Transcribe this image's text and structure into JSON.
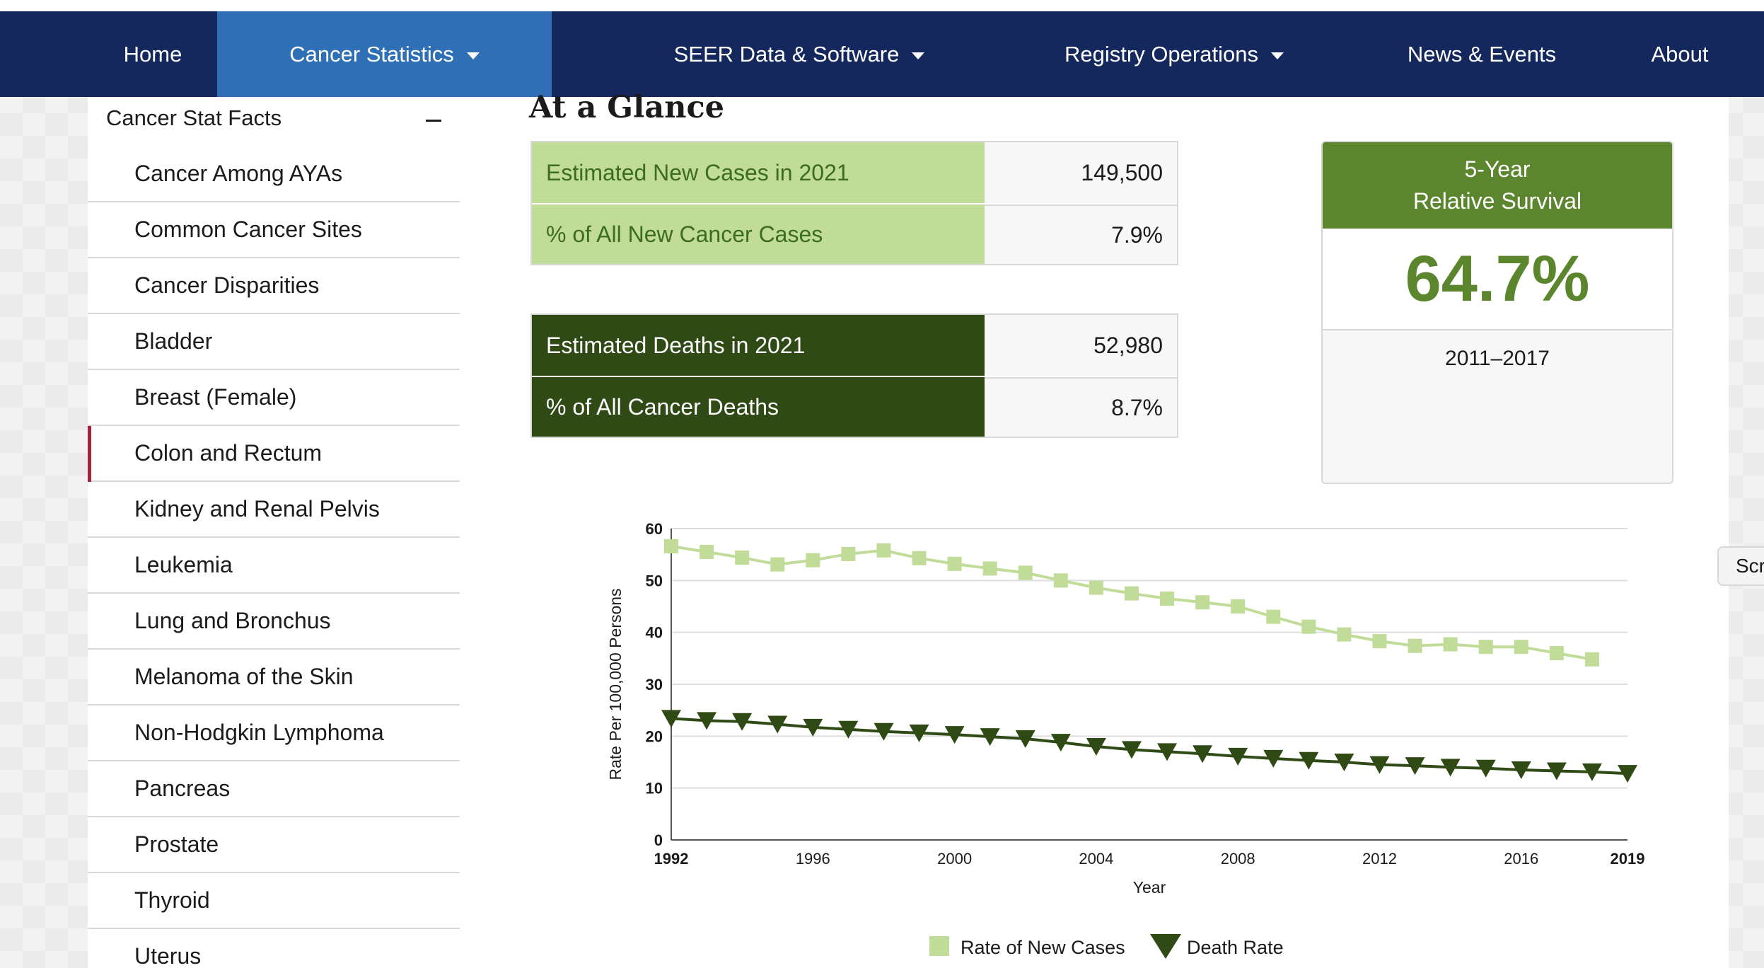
{
  "nav": {
    "home": "Home",
    "cancer_statistics": "Cancer Statistics",
    "seer_data": "SEER Data & Software",
    "registry_operations": "Registry Operations",
    "news_events": "News & Events",
    "about": "About"
  },
  "sidebar": {
    "heading": "Cancer Stat Facts",
    "items": [
      {
        "label": "Cancer Among AYAs"
      },
      {
        "label": "Common Cancer Sites"
      },
      {
        "label": "Cancer Disparities"
      },
      {
        "label": "Bladder"
      },
      {
        "label": "Breast (Female)"
      },
      {
        "label": "Colon and Rectum",
        "current": true
      },
      {
        "label": "Kidney and Renal Pelvis"
      },
      {
        "label": "Leukemia"
      },
      {
        "label": "Lung and Bronchus"
      },
      {
        "label": "Melanoma of the Skin"
      },
      {
        "label": "Non-Hodgkin Lymphoma"
      },
      {
        "label": "Pancreas"
      },
      {
        "label": "Prostate"
      },
      {
        "label": "Thyroid"
      },
      {
        "label": "Uterus"
      }
    ]
  },
  "glance": {
    "title": "At a Glance",
    "new_cases": {
      "label": "Estimated New Cases in 2021",
      "value": "149,500",
      "pct_label": "% of All New Cancer Cases",
      "pct_value": "7.9%"
    },
    "deaths": {
      "label": "Estimated Deaths in 2021",
      "value": "52,980",
      "pct_label": "% of All Cancer Deaths",
      "pct_value": "8.7%"
    },
    "survival": {
      "line1": "5-Year",
      "line2": "Relative Survival",
      "value": "64.7%",
      "years": "2011–2017"
    }
  },
  "side_tab": "Scr",
  "colors": {
    "nav_bg": "#14285e",
    "nav_active": "#2e6fb5",
    "light_green": "#c1dc98",
    "dark_green": "#2f4a14",
    "accent_green": "#5c862d",
    "new_cases_series": "#c1dc98",
    "death_series": "#2f4a14"
  },
  "chart_data": {
    "type": "line",
    "title": "",
    "xlabel": "Year",
    "ylabel": "Rate Per 100,000 Persons",
    "xlim": [
      1992,
      2019
    ],
    "ylim": [
      0,
      60
    ],
    "x_ticks": [
      "1992",
      "1996",
      "2000",
      "2004",
      "2008",
      "2012",
      "2016",
      "2019"
    ],
    "y_ticks": [
      "0",
      "10",
      "20",
      "30",
      "40",
      "50",
      "60"
    ],
    "grid": true,
    "legend_position": "bottom-center",
    "series": [
      {
        "name": "Rate of New Cases",
        "marker": "square",
        "x": [
          1992,
          1993,
          1994,
          1995,
          1996,
          1997,
          1998,
          1999,
          2000,
          2001,
          2002,
          2003,
          2004,
          2005,
          2006,
          2007,
          2008,
          2009,
          2010,
          2011,
          2012,
          2013,
          2014,
          2015,
          2016,
          2017,
          2018
        ],
        "values": [
          56.6,
          55.5,
          54.4,
          53.1,
          53.9,
          55.1,
          55.8,
          54.3,
          53.2,
          52.3,
          51.5,
          50.0,
          48.6,
          47.5,
          46.5,
          45.8,
          45.0,
          43.0,
          41.1,
          39.6,
          38.3,
          37.4,
          37.7,
          37.2,
          37.2,
          36.0,
          34.8
        ]
      },
      {
        "name": "Death Rate",
        "marker": "triangle-down",
        "x": [
          1992,
          1993,
          1994,
          1995,
          1996,
          1997,
          1998,
          1999,
          2000,
          2001,
          2002,
          2003,
          2004,
          2005,
          2006,
          2007,
          2008,
          2009,
          2010,
          2011,
          2012,
          2013,
          2014,
          2015,
          2016,
          2017,
          2018,
          2019
        ],
        "values": [
          23.4,
          23.0,
          22.8,
          22.3,
          21.7,
          21.3,
          20.9,
          20.6,
          20.3,
          19.9,
          19.5,
          18.8,
          18.0,
          17.4,
          17.0,
          16.6,
          16.1,
          15.7,
          15.3,
          15.0,
          14.5,
          14.3,
          14.0,
          13.8,
          13.5,
          13.3,
          13.1,
          12.8
        ]
      }
    ]
  }
}
